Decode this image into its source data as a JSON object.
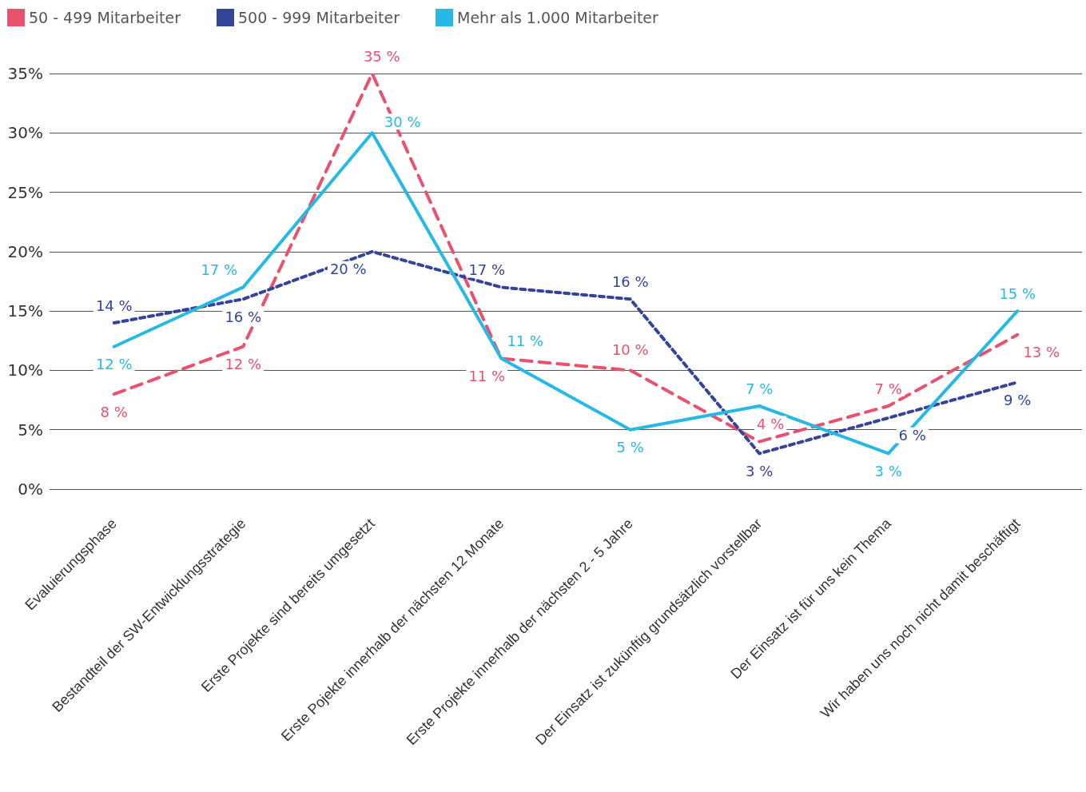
{
  "chart_data": {
    "type": "line",
    "categories": [
      "Evaluierungsphase",
      "Bestandteil der SW-Entwicklungsstrategie",
      "Erste Projekte sind bereits umgesetzt",
      "Erste Pojekte innerhalb der nächsten 12 Monate",
      "Erste Projekte innerhalb der nächsten 2 - 5 Jahre",
      "Der Einsatz ist zukünftig grundsätzlich vorstellbar",
      "Der Einsatz ist für uns kein Thema",
      "Wir haben uns noch nicht damit beschäftigt"
    ],
    "series": [
      {
        "name": "50 - 499 Mitarbeiter",
        "color": "#e8526f",
        "line_style": "dashed",
        "values": [
          8,
          12,
          35,
          11,
          10,
          4,
          7,
          13
        ],
        "value_labels": [
          "8 %",
          "12 %",
          "35 %",
          "11 %",
          "10 %",
          "4 %",
          "7 %",
          "13 %"
        ]
      },
      {
        "name": "500 - 999 Mitarbeiter",
        "color": "#33449a",
        "line_style": "dotted",
        "values": [
          14,
          16,
          20,
          17,
          16,
          3,
          6,
          9
        ],
        "value_labels": [
          "14 %",
          "16 %",
          "20 %",
          "17 %",
          "16 %",
          "3 %",
          "6 %",
          "9 %"
        ]
      },
      {
        "name": "Mehr als 1.000 Mitarbeiter",
        "color": "#27b9e6",
        "line_style": "solid",
        "values": [
          12,
          17,
          30,
          11,
          5,
          7,
          3,
          15
        ],
        "value_labels": [
          "12 %",
          "17 %",
          "30 %",
          "11 %",
          "5 %",
          "7 %",
          "3 %",
          "15 %"
        ]
      }
    ],
    "ylim": [
      0,
      35
    ],
    "yticks": [
      {
        "value": 0,
        "label": "0%"
      },
      {
        "value": 5,
        "label": "5%"
      },
      {
        "value": 10,
        "label": "10%"
      },
      {
        "value": 15,
        "label": "15%"
      },
      {
        "value": 20,
        "label": "20%"
      },
      {
        "value": 25,
        "label": "25%"
      },
      {
        "value": 30,
        "label": "30%"
      },
      {
        "value": 35,
        "label": "35%"
      }
    ],
    "grid": "y",
    "legend": "top left",
    "marker": "none"
  }
}
